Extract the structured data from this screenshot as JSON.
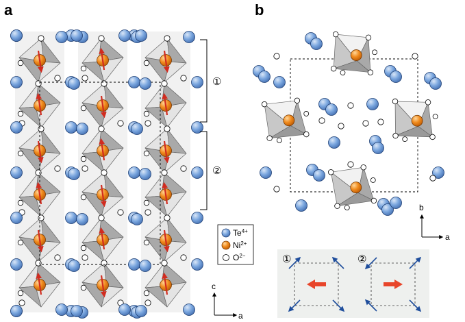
{
  "panels": {
    "a": {
      "label": "a"
    },
    "b": {
      "label": "b"
    }
  },
  "regions": {
    "region1": "①",
    "region2": "②"
  },
  "legend": {
    "items": [
      {
        "ion": "Te",
        "charge": "4+",
        "color": "#7ba7df"
      },
      {
        "ion": "Ni",
        "charge": "2+",
        "color": "#f08a1c"
      },
      {
        "ion": "O",
        "charge": "2−",
        "color": "#ffffff"
      }
    ]
  },
  "axes": {
    "panel_a": {
      "up": "c",
      "right": "a"
    },
    "panel_b": {
      "up": "b",
      "right": "a"
    }
  },
  "spin_insets": [
    {
      "label": "①"
    },
    {
      "label": "②"
    }
  ],
  "colors": {
    "te": "#7ba7df",
    "ni": "#f08a1c",
    "octahedron_dark": "#a9a9a9",
    "octahedron_light": "#e4e4e4",
    "spin_arrow": "#d12b1f",
    "inset_arrow": "#1f4e9c",
    "inset_bg": "#eef0ee",
    "big_arrow": "#e8452a"
  }
}
